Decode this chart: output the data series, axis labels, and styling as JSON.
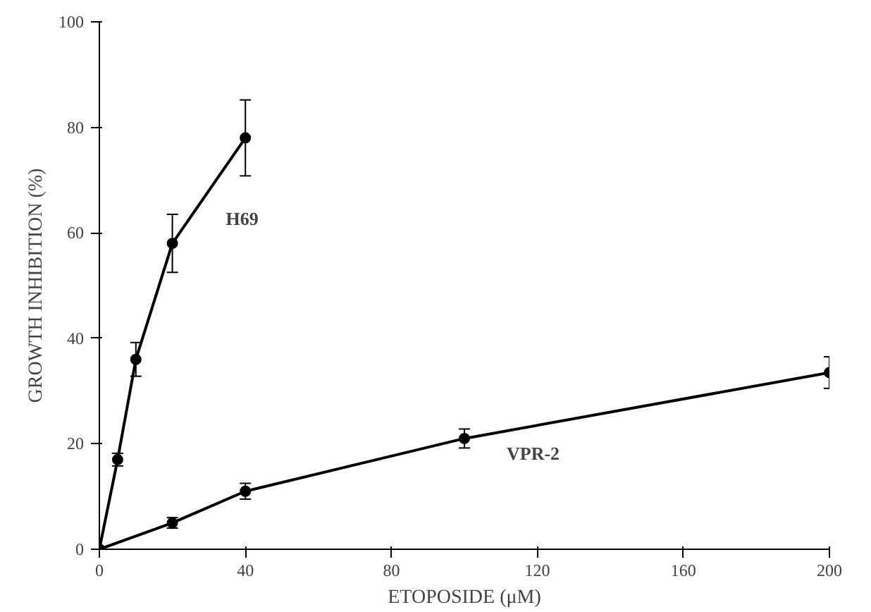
{
  "chart_data": {
    "type": "line",
    "xlabel": "ETOPOSIDE (μM)",
    "ylabel": "GROWTH INHIBITION (%)",
    "xlim": [
      0,
      200
    ],
    "ylim": [
      0,
      100
    ],
    "xticks": [
      0,
      40,
      80,
      120,
      160,
      200
    ],
    "yticks": [
      0,
      20,
      40,
      60,
      80,
      100
    ],
    "grid": false,
    "marker": "circle",
    "line_style": "solid",
    "series": [
      {
        "name": "H69",
        "color": "#000000",
        "x": [
          0,
          5,
          10,
          20,
          40
        ],
        "values": [
          0,
          17,
          36,
          58,
          78
        ],
        "errors": [
          null,
          1.2,
          3.2,
          5.5,
          7.2
        ]
      },
      {
        "name": "VPR-2",
        "color": "#000000",
        "x": [
          0,
          20,
          40,
          100,
          200
        ],
        "values": [
          0,
          5,
          11,
          21,
          33.5
        ],
        "errors": [
          null,
          1,
          1.5,
          1.8,
          3
        ]
      }
    ]
  }
}
